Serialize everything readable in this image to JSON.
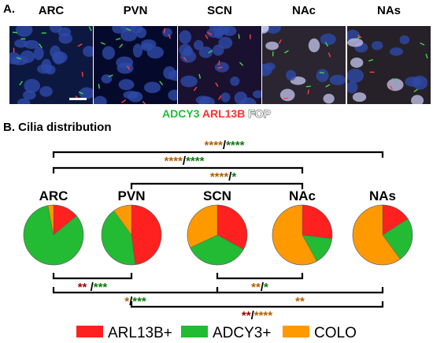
{
  "panel_a": {
    "label": "A.",
    "regions": [
      "ARC",
      "PVN",
      "SCN",
      "NAc",
      "NAs"
    ],
    "stains": [
      {
        "name": "ADCY3",
        "color": "#1fbf3a"
      },
      {
        "name": "ARL13B",
        "color": "#ff3030"
      },
      {
        "name": "FOP",
        "color": "#ffffff"
      }
    ]
  },
  "chart_data": {
    "type": "pie",
    "title": "B. Cilia distribution",
    "series_names": [
      "ARL13B+",
      "ADCY3+",
      "COLO"
    ],
    "colors": {
      "ARL13B+": "#ff2020",
      "ADCY3+": "#22bb33",
      "COLO": "#ff9900"
    },
    "categories": [
      "ARC",
      "PVN",
      "SCN",
      "NAc",
      "NAs"
    ],
    "pies": [
      {
        "label": "ARC",
        "values": {
          "ARL13B+": 14,
          "ADCY3+": 83,
          "COLO": 3
        }
      },
      {
        "label": "PVN",
        "values": {
          "ARL13B+": 48,
          "ADCY3+": 42,
          "COLO": 10
        }
      },
      {
        "label": "SCN",
        "values": {
          "ARL13B+": 33,
          "ADCY3+": 35,
          "COLO": 32
        }
      },
      {
        "label": "NAc",
        "values": {
          "ARL13B+": 27,
          "ADCY3+": 15,
          "COLO": 58
        }
      },
      {
        "label": "NAs",
        "values": {
          "ARL13B+": 16,
          "ADCY3+": 24,
          "COLO": 60
        }
      }
    ],
    "comparisons_top": [
      {
        "from": "ARC",
        "to": "NAs",
        "stars": [
          {
            "text": "****",
            "color": "#b06000"
          },
          {
            "text": "/",
            "color": "#000000"
          },
          {
            "text": "****",
            "color": "#0a7a0a"
          }
        ]
      },
      {
        "from": "ARC",
        "to": "NAc",
        "stars": [
          {
            "text": "****",
            "color": "#b06000"
          },
          {
            "text": "/",
            "color": "#000000"
          },
          {
            "text": "****",
            "color": "#0a7a0a"
          }
        ]
      },
      {
        "from": "PVN",
        "to": "NAc",
        "stars": [
          {
            "text": "****",
            "color": "#b06000"
          },
          {
            "text": "/",
            "color": "#000000"
          },
          {
            "text": "*",
            "color": "#0a7a0a"
          }
        ]
      }
    ],
    "comparisons_bottom": [
      {
        "from": "ARC",
        "to": "PVN",
        "stars": [
          {
            "text": "**",
            "color": "#a00000"
          },
          {
            "text": " /",
            "color": "#000000"
          },
          {
            "text": "***",
            "color": "#0a7a0a"
          }
        ]
      },
      {
        "from": "SCN",
        "to": "NAc",
        "stars": [
          {
            "text": "**",
            "color": "#b06000"
          },
          {
            "text": "/",
            "color": "#000000"
          },
          {
            "text": "*",
            "color": "#0a7a0a"
          }
        ]
      },
      {
        "from": "ARC",
        "to": "SCN",
        "stars": [
          {
            "text": "*",
            "color": "#b06000"
          },
          {
            "text": "/",
            "color": "#000000"
          },
          {
            "text": "***",
            "color": "#0a7a0a"
          }
        ]
      },
      {
        "from": "SCN",
        "to": "NAs",
        "stars": [
          {
            "text": "**",
            "color": "#b06000"
          }
        ]
      },
      {
        "from": "PVN",
        "to": "NAs",
        "stars": [
          {
            "text": "**",
            "color": "#a00000"
          },
          {
            "text": "/",
            "color": "#000000"
          },
          {
            "text": "****",
            "color": "#b06000"
          }
        ]
      }
    ],
    "legend": {
      "placement": "bottom"
    }
  }
}
